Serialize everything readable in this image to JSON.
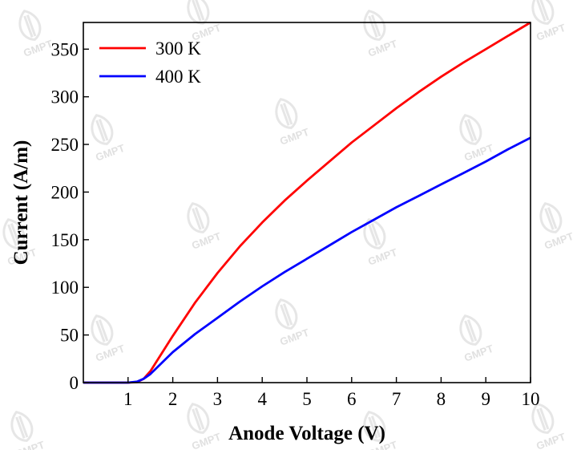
{
  "chart_data": {
    "type": "line",
    "xlabel": "Anode Voltage (V)",
    "ylabel": "Current (A/m)",
    "xlim": [
      0,
      10
    ],
    "ylim": [
      0,
      378
    ],
    "x_ticks": [
      1,
      2,
      3,
      4,
      5,
      6,
      7,
      8,
      9,
      10
    ],
    "y_ticks": [
      0,
      50,
      100,
      150,
      200,
      250,
      300,
      350
    ],
    "grid": false,
    "legend_position": "top-left",
    "series": [
      {
        "name": "300 K",
        "color": "#ff0000",
        "x": [
          0,
          1,
          1.2,
          1.35,
          1.5,
          2,
          2.5,
          3,
          3.5,
          4,
          4.5,
          5,
          5.5,
          6,
          6.5,
          7,
          7.5,
          8,
          8.5,
          9,
          9.5,
          10
        ],
        "y": [
          0,
          0,
          0.5,
          4,
          12,
          49,
          84,
          115,
          143,
          168,
          191,
          212,
          232,
          252,
          270,
          288,
          305,
          321,
          336,
          350,
          364,
          378
        ]
      },
      {
        "name": "400 K",
        "color": "#0000ff",
        "x": [
          0,
          1,
          1.2,
          1.35,
          1.5,
          2,
          2.5,
          3,
          3.5,
          4,
          4.5,
          5,
          5.5,
          6,
          6.5,
          7,
          7.5,
          8,
          8.5,
          9,
          9.5,
          10
        ],
        "y": [
          0,
          0,
          1,
          4,
          9,
          32,
          51,
          68,
          85,
          101,
          116,
          130,
          144,
          158,
          171,
          184,
          196,
          208,
          220,
          232,
          245,
          257
        ]
      }
    ]
  },
  "watermark": {
    "text": "GMPT"
  }
}
